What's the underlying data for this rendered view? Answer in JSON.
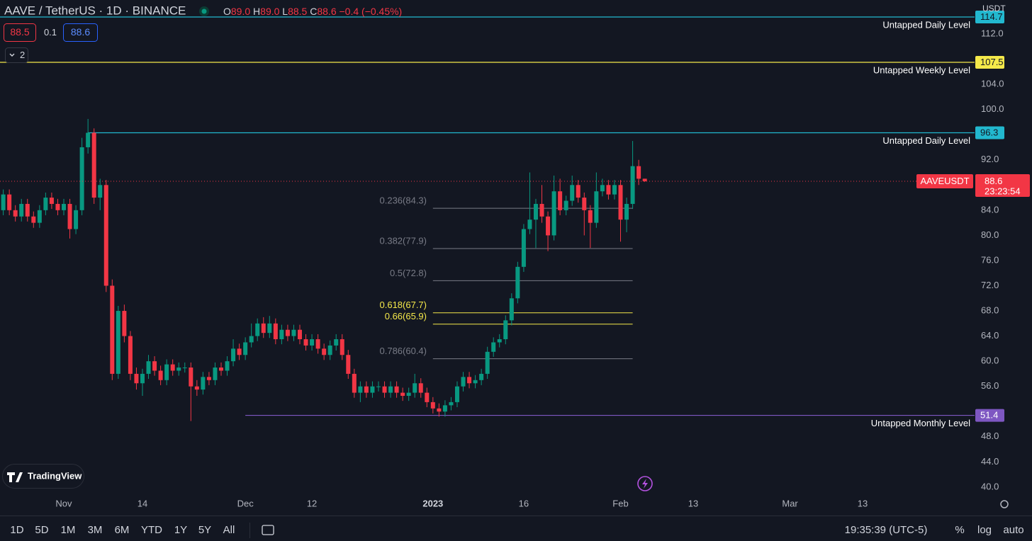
{
  "header": {
    "symbol": "AAVE / TetherUS · 1D · BINANCE",
    "ohlc": [
      {
        "key": "O",
        "value": "89.0"
      },
      {
        "key": "H",
        "value": "89.0"
      },
      {
        "key": "L",
        "value": "88.5"
      },
      {
        "key": "C",
        "value": "88.6"
      }
    ],
    "change": "−0.4 (−0.45%)",
    "bid": "88.5",
    "spread": "0.1",
    "ask": "88.6",
    "collapse": "2",
    "currency": "USDT",
    "logo": "TradingView",
    "timeframes": [
      "1D",
      "5D",
      "1M",
      "3M",
      "6M",
      "YTD",
      "1Y",
      "5Y",
      "All"
    ],
    "clock": "19:35:39 (UTC-5)",
    "scale_options": [
      "%",
      "log",
      "auto"
    ]
  },
  "chart_data": {
    "type": "candlestick",
    "up_color": "#089981",
    "down_color": "#f23645",
    "open": [
      84,
      86.5,
      84,
      83,
      85,
      83,
      82,
      84,
      86,
      85,
      84,
      85,
      81,
      84,
      94,
      96.3,
      86,
      88,
      72,
      58,
      68,
      64,
      58,
      56.5,
      58,
      60,
      58.5,
      57,
      59.5,
      58.5,
      59,
      59,
      56,
      55.5,
      57.5,
      57,
      59,
      58.5,
      60,
      62,
      61,
      63,
      64,
      66,
      64.5,
      66,
      63.5,
      65,
      64,
      65,
      63.5,
      62.5,
      63.5,
      62,
      61,
      62.5,
      63.5,
      61,
      58,
      55,
      56,
      55,
      56,
      56,
      55,
      56,
      55,
      54.5,
      55,
      56.5,
      55,
      53.5,
      52.5,
      52,
      53,
      53.5,
      56,
      57.5,
      56.5,
      57,
      58,
      61.5,
      63,
      63.5,
      66.5,
      70,
      75,
      81,
      82.5,
      85,
      83,
      80,
      87,
      84,
      85.5,
      88,
      86,
      84,
      82,
      87,
      88,
      86.5,
      88,
      82.5,
      85,
      91,
      89
    ],
    "high": [
      87.3,
      87.3,
      84.8,
      85.8,
      85.8,
      83.8,
      84.8,
      86.8,
      86.8,
      85.8,
      85.8,
      85.8,
      84.8,
      95.5,
      98.5,
      97,
      89,
      88.8,
      73,
      68.8,
      69,
      64.8,
      59,
      58.8,
      61,
      60.8,
      59.3,
      60.3,
      60.3,
      59.8,
      59.8,
      59.8,
      57,
      58.3,
      58.3,
      59.8,
      59.8,
      60.8,
      63.5,
      62.8,
      63.8,
      66,
      66.8,
      67,
      67.2,
      66.8,
      65.8,
      65.8,
      65.8,
      65.8,
      64.3,
      64.3,
      64.3,
      62.8,
      63.3,
      64.3,
      64.3,
      61.8,
      58.8,
      56.8,
      56.8,
      56.8,
      56.8,
      56.8,
      56.8,
      56.8,
      55.8,
      55.8,
      58,
      57.3,
      55.8,
      54.3,
      53.3,
      53.8,
      54.3,
      56.8,
      58.3,
      58.3,
      57.8,
      58.8,
      62.3,
      63.8,
      64.3,
      67.3,
      70.8,
      75.8,
      81.8,
      90,
      85.8,
      88,
      83.8,
      89.5,
      89,
      86.3,
      89.5,
      88.8,
      86.8,
      84.8,
      90,
      89,
      88.8,
      88.8,
      88.8,
      86,
      95,
      92,
      89
    ],
    "low": [
      83.2,
      83.2,
      82.2,
      82.2,
      82.2,
      81.2,
      81.2,
      83.2,
      84.2,
      83.2,
      83.2,
      79.5,
      80.2,
      83.2,
      93,
      85,
      84,
      71,
      57,
      57.2,
      63,
      57,
      55.5,
      54.5,
      57.2,
      57.7,
      56.2,
      56.2,
      57.7,
      57.7,
      58.2,
      50.5,
      54.5,
      54.7,
      56.2,
      56.2,
      57.7,
      57.7,
      59.2,
      60.2,
      60.2,
      62.2,
      63.2,
      63.7,
      63.7,
      62.7,
      62.7,
      63.2,
      63.2,
      62.7,
      61.7,
      61.7,
      61.2,
      60.2,
      60.2,
      61.7,
      60.2,
      57.2,
      54.2,
      53.5,
      54.2,
      54.2,
      55.2,
      54.2,
      54.2,
      54.2,
      53.7,
      53.7,
      54.2,
      54.2,
      52.7,
      51.7,
      51.2,
      51.2,
      52.2,
      52.7,
      55.2,
      55.7,
      55.7,
      56.2,
      57.2,
      60.7,
      62.2,
      62.7,
      65.7,
      69.2,
      74.2,
      80.2,
      78,
      82,
      77.5,
      79.2,
      83.2,
      83.2,
      84.7,
      85.2,
      80,
      78,
      81.2,
      86.2,
      85.7,
      85.7,
      79,
      80.5,
      84.2,
      88,
      88.5
    ],
    "close": [
      86.5,
      84,
      83,
      85,
      83,
      82,
      84,
      86,
      85,
      84,
      85,
      81,
      84,
      94,
      96.3,
      86,
      88,
      72,
      58,
      68,
      64,
      58,
      56.5,
      58,
      60,
      58.5,
      57,
      59.5,
      58.5,
      59,
      59,
      56,
      55.5,
      57.5,
      57,
      59,
      58.5,
      60,
      62,
      61,
      63,
      64,
      66,
      64.5,
      66,
      63.5,
      65,
      64,
      65,
      63.5,
      62.5,
      63.5,
      62,
      61,
      62.5,
      63.5,
      61,
      58,
      55,
      56,
      55,
      56,
      56,
      55,
      56,
      55,
      54.5,
      55,
      56.5,
      55,
      53.5,
      52.5,
      52,
      53,
      53.5,
      56,
      57.5,
      56.5,
      57,
      58,
      61.5,
      63,
      63.5,
      66.5,
      70,
      75,
      81,
      82.5,
      85,
      83,
      80,
      87,
      84,
      85.5,
      88,
      86,
      84,
      82,
      87,
      88,
      86.5,
      88,
      82.5,
      85,
      91,
      89,
      88.6
    ],
    "ylim": [
      35.6,
      117.4
    ],
    "yticks": [
      {
        "value": 112,
        "label": "112.0"
      },
      {
        "value": 104,
        "label": "104.0"
      },
      {
        "value": 100,
        "label": "100.0"
      },
      {
        "value": 92,
        "label": "92.0"
      },
      {
        "value": 84,
        "label": "84.0"
      },
      {
        "value": 80,
        "label": "80.0"
      },
      {
        "value": 76,
        "label": "76.0"
      },
      {
        "value": 72,
        "label": "72.0"
      },
      {
        "value": 68,
        "label": "68.0"
      },
      {
        "value": 64,
        "label": "64.0"
      },
      {
        "value": 60,
        "label": "60.0"
      },
      {
        "value": 56,
        "label": "56.0"
      },
      {
        "value": 48,
        "label": "48.0"
      },
      {
        "value": 44,
        "label": "44.0"
      },
      {
        "value": 40,
        "label": "40.0"
      }
    ],
    "xlim": [
      -0.54,
      160.5
    ],
    "xticks": [
      {
        "value": 10,
        "label": "Nov"
      },
      {
        "value": 23,
        "label": "14"
      },
      {
        "value": 40,
        "label": "Dec"
      },
      {
        "value": 51,
        "label": "12"
      },
      {
        "value": 71,
        "label": "2023"
      },
      {
        "value": 86,
        "label": "16"
      },
      {
        "value": 102,
        "label": "Feb"
      },
      {
        "value": 114,
        "label": "13"
      },
      {
        "value": 130,
        "label": "Mar"
      },
      {
        "value": 142,
        "label": "13"
      }
    ],
    "grid": false,
    "levels": [
      {
        "name": "Untapped Daily Level",
        "value": 114.7,
        "color": "#22b8cf",
        "start": -0.54
      },
      {
        "name": "Untapped Weekly Level",
        "value": 107.5,
        "color": "#f5e94a",
        "start": -0.54
      },
      {
        "name": "Untapped Daily Level",
        "value": 96.3,
        "color": "#22b8cf",
        "start": 14
      },
      {
        "name": "Untapped Monthly Level",
        "value": 51.4,
        "color": "#7e57c2",
        "start": 40
      }
    ],
    "fib": {
      "start": 71,
      "end": 104,
      "levels": [
        {
          "label": "0.236(84.3)",
          "value": 84.3,
          "color": "#787b86"
        },
        {
          "label": "0.382(77.9)",
          "value": 77.9,
          "color": "#787b86"
        },
        {
          "label": "0.5(72.8)",
          "value": 72.8,
          "color": "#787b86"
        },
        {
          "label": "0.618(67.7)",
          "value": 67.7,
          "color": "#f5e94a"
        },
        {
          "label": "0.66(65.9)",
          "value": 65.9,
          "color": "#f5e94a"
        },
        {
          "label": "0.786(60.4)",
          "value": 60.4,
          "color": "#787b86"
        }
      ]
    },
    "last_label": "AAVEUSDT",
    "countdown": "23:23:54"
  }
}
